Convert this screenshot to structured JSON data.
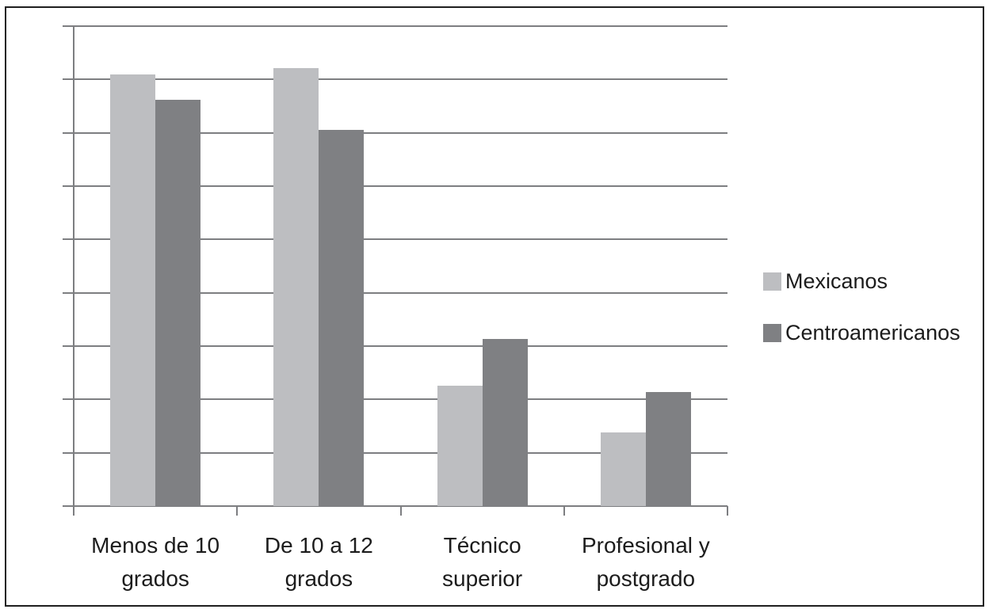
{
  "chart_data": {
    "type": "bar",
    "title": "",
    "categories": [
      "Menos de 10 grados",
      "De 10 a 12 grados",
      "Técnico superior",
      "Profesional y postgrado"
    ],
    "category_label_lines": [
      [
        "Menos de 10",
        "grados"
      ],
      [
        "De 10 a 12",
        "grados"
      ],
      [
        "Técnico",
        "superior"
      ],
      [
        "Profesional y",
        "postgrado"
      ]
    ],
    "series": [
      {
        "name": "Mexicanos",
        "color": "#bdbec1",
        "values": [
          40.5,
          41.1,
          11.3,
          6.9
        ]
      },
      {
        "name": "Centroamericanos",
        "color": "#7f8083",
        "values": [
          38.1,
          35.3,
          15.7,
          10.7
        ]
      }
    ],
    "ylim": [
      0,
      45
    ],
    "yticks": [
      0,
      5,
      10,
      15,
      20,
      25,
      30,
      35,
      40,
      45
    ],
    "xlabel": "",
    "ylabel": "",
    "grid": "horizontal-only",
    "legend_position": "right-middle",
    "colors": {
      "gridline": "#7d7e81",
      "axis": "#7d7e81",
      "text": "#1c1c1c",
      "frame_border": "#1f1f1f",
      "background": "#ffffff"
    }
  }
}
